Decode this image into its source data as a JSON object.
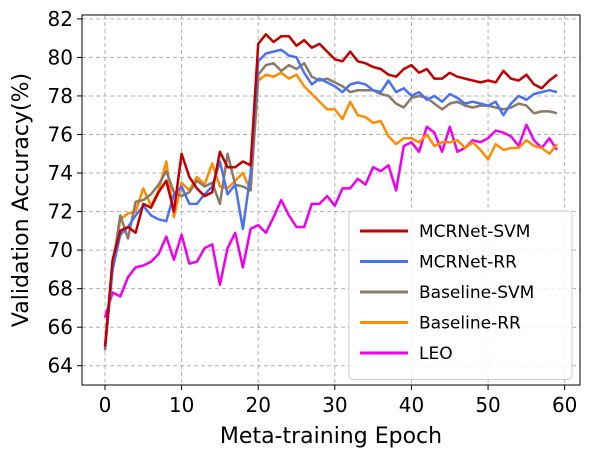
{
  "chart_data": {
    "type": "line",
    "xlabel": "Meta-training Epoch",
    "ylabel": "Validation Accuracy(%)",
    "xlim": [
      -3,
      62
    ],
    "ylim": [
      63,
      82.2
    ],
    "xticks": [
      0,
      10,
      20,
      30,
      40,
      50,
      60
    ],
    "yticks": [
      64,
      66,
      68,
      70,
      72,
      74,
      76,
      78,
      80,
      82
    ],
    "grid": true,
    "legend_position": "lower-right",
    "x": [
      0,
      1,
      2,
      3,
      4,
      5,
      6,
      7,
      8,
      9,
      10,
      11,
      12,
      13,
      14,
      15,
      16,
      17,
      18,
      19,
      20,
      21,
      22,
      23,
      24,
      25,
      26,
      27,
      28,
      29,
      30,
      31,
      32,
      33,
      34,
      35,
      36,
      37,
      38,
      39,
      40,
      41,
      42,
      43,
      44,
      45,
      46,
      47,
      48,
      49,
      50,
      51,
      52,
      53,
      54,
      55,
      56,
      57,
      58,
      59
    ],
    "series": [
      {
        "name": "MCRNet-SVM",
        "color": "#c00000",
        "values": [
          65.0,
          69.5,
          71.0,
          71.2,
          70.9,
          72.4,
          72.2,
          73.0,
          73.6,
          72.0,
          75.0,
          73.8,
          73.2,
          72.8,
          73.0,
          75.1,
          74.3,
          74.3,
          74.6,
          74.4,
          80.7,
          81.2,
          80.8,
          81.1,
          81.1,
          80.6,
          80.9,
          80.5,
          80.7,
          80.3,
          79.9,
          79.8,
          80.3,
          79.8,
          79.7,
          79.5,
          79.4,
          79.1,
          79.0,
          79.4,
          79.6,
          79.2,
          79.4,
          78.9,
          78.9,
          79.2,
          79.0,
          78.9,
          78.8,
          78.7,
          78.8,
          78.7,
          79.3,
          78.9,
          78.8,
          79.1,
          78.6,
          78.4,
          78.8,
          79.1
        ]
      },
      {
        "name": "MCRNet-RR",
        "color": "#4a72f0",
        "values": [
          64.9,
          69.0,
          70.8,
          71.2,
          71.8,
          72.3,
          71.8,
          71.6,
          71.5,
          72.9,
          73.3,
          72.4,
          72.4,
          72.9,
          73.3,
          74.6,
          72.9,
          73.4,
          71.1,
          74.0,
          79.8,
          80.2,
          80.3,
          80.4,
          80.1,
          80.0,
          79.2,
          78.6,
          78.9,
          78.7,
          78.5,
          78.2,
          78.6,
          78.7,
          78.6,
          78.3,
          78.2,
          78.8,
          78.2,
          78.4,
          78.0,
          78.2,
          77.8,
          78.0,
          77.7,
          78.1,
          77.9,
          77.6,
          77.7,
          77.6,
          77.5,
          77.7,
          77.0,
          77.6,
          78.0,
          77.8,
          78.1,
          78.2,
          78.3,
          78.2
        ]
      },
      {
        "name": "Baseline-SVM",
        "color": "#8b7a66",
        "values": [
          64.8,
          69.2,
          71.8,
          70.6,
          72.5,
          72.6,
          72.9,
          73.4,
          74.1,
          73.0,
          72.8,
          73.0,
          73.6,
          73.3,
          73.5,
          72.4,
          75.0,
          73.4,
          73.3,
          73.1,
          79.1,
          79.6,
          79.7,
          79.3,
          79.6,
          79.4,
          79.7,
          79.0,
          78.8,
          78.9,
          78.7,
          78.5,
          78.2,
          78.3,
          78.3,
          78.3,
          78.1,
          78.0,
          77.6,
          77.4,
          77.9,
          78.0,
          77.9,
          77.6,
          77.3,
          77.6,
          77.7,
          77.5,
          77.4,
          77.5,
          77.5,
          77.4,
          77.3,
          77.4,
          77.6,
          77.5,
          77.1,
          77.2,
          77.2,
          77.1
        ]
      },
      {
        "name": "Baseline-RR",
        "color": "#ff8c00",
        "values": [
          64.8,
          69.0,
          71.6,
          71.9,
          72.0,
          73.2,
          72.3,
          73.1,
          74.6,
          71.7,
          73.5,
          73.1,
          73.8,
          73.4,
          74.5,
          73.3,
          73.2,
          73.6,
          74.0,
          73.1,
          78.8,
          79.1,
          79.0,
          79.2,
          78.9,
          79.1,
          78.5,
          78.1,
          77.7,
          77.3,
          77.3,
          76.8,
          77.7,
          77.0,
          76.9,
          76.6,
          76.7,
          75.9,
          75.5,
          75.8,
          75.8,
          75.6,
          76.0,
          75.4,
          75.6,
          75.6,
          75.7,
          75.3,
          75.6,
          75.2,
          74.7,
          75.5,
          75.2,
          75.3,
          75.3,
          75.7,
          75.4,
          75.3,
          75.0,
          75.5
        ]
      },
      {
        "name": "LEO",
        "color": "#ee00ee",
        "values": [
          66.5,
          67.8,
          67.6,
          68.6,
          69.1,
          69.2,
          69.4,
          69.8,
          70.7,
          69.5,
          70.8,
          69.3,
          69.4,
          70.1,
          70.3,
          68.2,
          70.1,
          70.9,
          69.1,
          71.1,
          71.3,
          70.9,
          71.7,
          72.6,
          71.8,
          71.2,
          71.2,
          72.4,
          72.4,
          72.8,
          72.3,
          73.2,
          73.2,
          73.7,
          73.4,
          74.3,
          74.1,
          74.4,
          73.1,
          75.4,
          75.6,
          75.1,
          76.4,
          76.1,
          75.1,
          76.4,
          75.1,
          75.3,
          75.7,
          75.6,
          75.8,
          76.2,
          76.1,
          75.9,
          75.4,
          76.5,
          75.7,
          75.3,
          75.8,
          75.2
        ]
      }
    ]
  }
}
